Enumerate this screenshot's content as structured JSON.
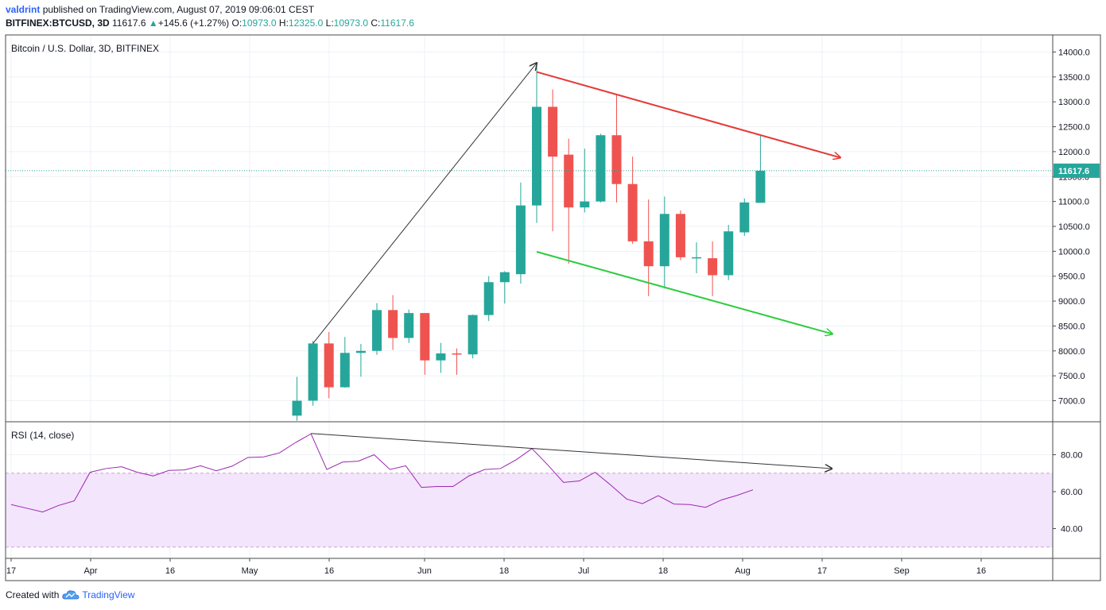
{
  "header": {
    "author": "valdrint",
    "published_text": "published on TradingView.com, August 07, 2019 09:06:01 CEST",
    "symbol": "BITFINEX:BTCUSD, 3D",
    "last": "11617.6",
    "change": "+145.6 (+1.27%)",
    "o_label": "O:",
    "o": "10973.0",
    "h_label": "H:",
    "h": "12325.0",
    "l_label": "L:",
    "l": "10973.0",
    "c_label": "C:",
    "c": "11617.6"
  },
  "footer": {
    "created_with": "Created with",
    "brand": "TradingView"
  },
  "colors": {
    "up": "#26a69a",
    "down": "#ef5350",
    "rsi": "#9c27b0",
    "rsi_band": "#f3e5fc",
    "red_line": "#e53935",
    "green_line": "#2ecc40",
    "trend": "#333333"
  },
  "chart_data": {
    "type": "candlestick",
    "title": "Bitcoin / U.S. Dollar, 3D, BITFINEX",
    "last_price_label": "11617.6",
    "price_axis": {
      "ylim": [
        6700,
        14250
      ],
      "ticks": [
        "7000.0",
        "7500.0",
        "8000.0",
        "8500.0",
        "9000.0",
        "9500.0",
        "10000.0",
        "10500.0",
        "11000.0",
        "11500.0",
        "12000.0",
        "12500.0",
        "13000.0",
        "13500.0",
        "14000.0"
      ]
    },
    "x_axis": {
      "labels": [
        "17",
        "Apr",
        "16",
        "May",
        "16",
        "Jun",
        "18",
        "Jul",
        "18",
        "Aug",
        "17",
        "Sep",
        "16"
      ]
    },
    "candles": [
      {
        "o": 6700,
        "h": 7480,
        "l": 6600,
        "c": 7000
      },
      {
        "o": 7000,
        "h": 8200,
        "l": 6900,
        "c": 8150
      },
      {
        "o": 8150,
        "h": 8380,
        "l": 7050,
        "c": 7270
      },
      {
        "o": 7270,
        "h": 8280,
        "l": 7260,
        "c": 7960
      },
      {
        "o": 7960,
        "h": 8140,
        "l": 7480,
        "c": 8000
      },
      {
        "o": 8000,
        "h": 8960,
        "l": 7920,
        "c": 8820
      },
      {
        "o": 8820,
        "h": 9120,
        "l": 8020,
        "c": 8260
      },
      {
        "o": 8260,
        "h": 8830,
        "l": 8160,
        "c": 8760
      },
      {
        "o": 8760,
        "h": 8760,
        "l": 7520,
        "c": 7810
      },
      {
        "o": 7810,
        "h": 8160,
        "l": 7560,
        "c": 7950
      },
      {
        "o": 7950,
        "h": 8050,
        "l": 7520,
        "c": 7930
      },
      {
        "o": 7930,
        "h": 8730,
        "l": 7850,
        "c": 8720
      },
      {
        "o": 8720,
        "h": 9500,
        "l": 8600,
        "c": 9380
      },
      {
        "o": 9380,
        "h": 9600,
        "l": 8950,
        "c": 9580
      },
      {
        "o": 9540,
        "h": 11380,
        "l": 9350,
        "c": 10920
      },
      {
        "o": 10920,
        "h": 13780,
        "l": 10570,
        "c": 12900
      },
      {
        "o": 12900,
        "h": 13250,
        "l": 10400,
        "c": 11900
      },
      {
        "o": 11940,
        "h": 12260,
        "l": 9750,
        "c": 10880
      },
      {
        "o": 10880,
        "h": 12060,
        "l": 10780,
        "c": 11000
      },
      {
        "o": 11000,
        "h": 12360,
        "l": 10980,
        "c": 12330
      },
      {
        "o": 12330,
        "h": 13150,
        "l": 10980,
        "c": 11350
      },
      {
        "o": 11350,
        "h": 11900,
        "l": 10150,
        "c": 10200
      },
      {
        "o": 10200,
        "h": 11040,
        "l": 9100,
        "c": 9700
      },
      {
        "o": 9700,
        "h": 11100,
        "l": 9250,
        "c": 10750
      },
      {
        "o": 10750,
        "h": 10820,
        "l": 9820,
        "c": 9880
      },
      {
        "o": 9880,
        "h": 10180,
        "l": 9560,
        "c": 9880
      },
      {
        "o": 9860,
        "h": 10200,
        "l": 9100,
        "c": 9520
      },
      {
        "o": 9520,
        "h": 10530,
        "l": 9420,
        "c": 10400
      },
      {
        "o": 10380,
        "h": 11060,
        "l": 10310,
        "c": 10980
      },
      {
        "o": 10973,
        "h": 12325,
        "l": 10973,
        "c": 11617.6
      }
    ],
    "rsi": {
      "label": "RSI (14, close)",
      "ylim": [
        22,
        97
      ],
      "ticks": [
        "80.00",
        "60.00",
        "40.00"
      ],
      "upper_band": 70,
      "lower_band": 30,
      "values": [
        53,
        51,
        49,
        52.5,
        55,
        70.5,
        72.5,
        73.5,
        70.5,
        68.5,
        71.5,
        71.8,
        74,
        71.3,
        73.8,
        78.5,
        78.8,
        81,
        86.5,
        91.3,
        72,
        76,
        76.5,
        80,
        72,
        74,
        62.3,
        62.8,
        62.8,
        68.5,
        72,
        72.5,
        77.3,
        83.3,
        74.5,
        65,
        65.8,
        70.5,
        63.5,
        56,
        53.5,
        57.8,
        53.3,
        53,
        51.5,
        55.5,
        58,
        61
      ]
    },
    "annotations": [
      {
        "name": "trendline-rally",
        "color": "trend",
        "p1": {
          "candle": 1,
          "price": 8150
        },
        "p2": {
          "candle": 15,
          "price": 13780
        }
      },
      {
        "name": "resistance-line",
        "color": "red_line",
        "p1": {
          "candle": 15,
          "price": 13600
        },
        "p2": {
          "candle": 34,
          "price": 11880
        }
      },
      {
        "name": "support-line",
        "color": "green_line",
        "p1": {
          "candle": 15,
          "price": 9990
        },
        "p2": {
          "candle": 33.5,
          "price": 8340
        }
      },
      {
        "name": "rsi-divergence-line",
        "color": "trend",
        "p1": {
          "rsi_index": 19,
          "value": 91.5
        },
        "p2": {
          "rsi_index": 52,
          "value": 72.5
        }
      }
    ]
  }
}
